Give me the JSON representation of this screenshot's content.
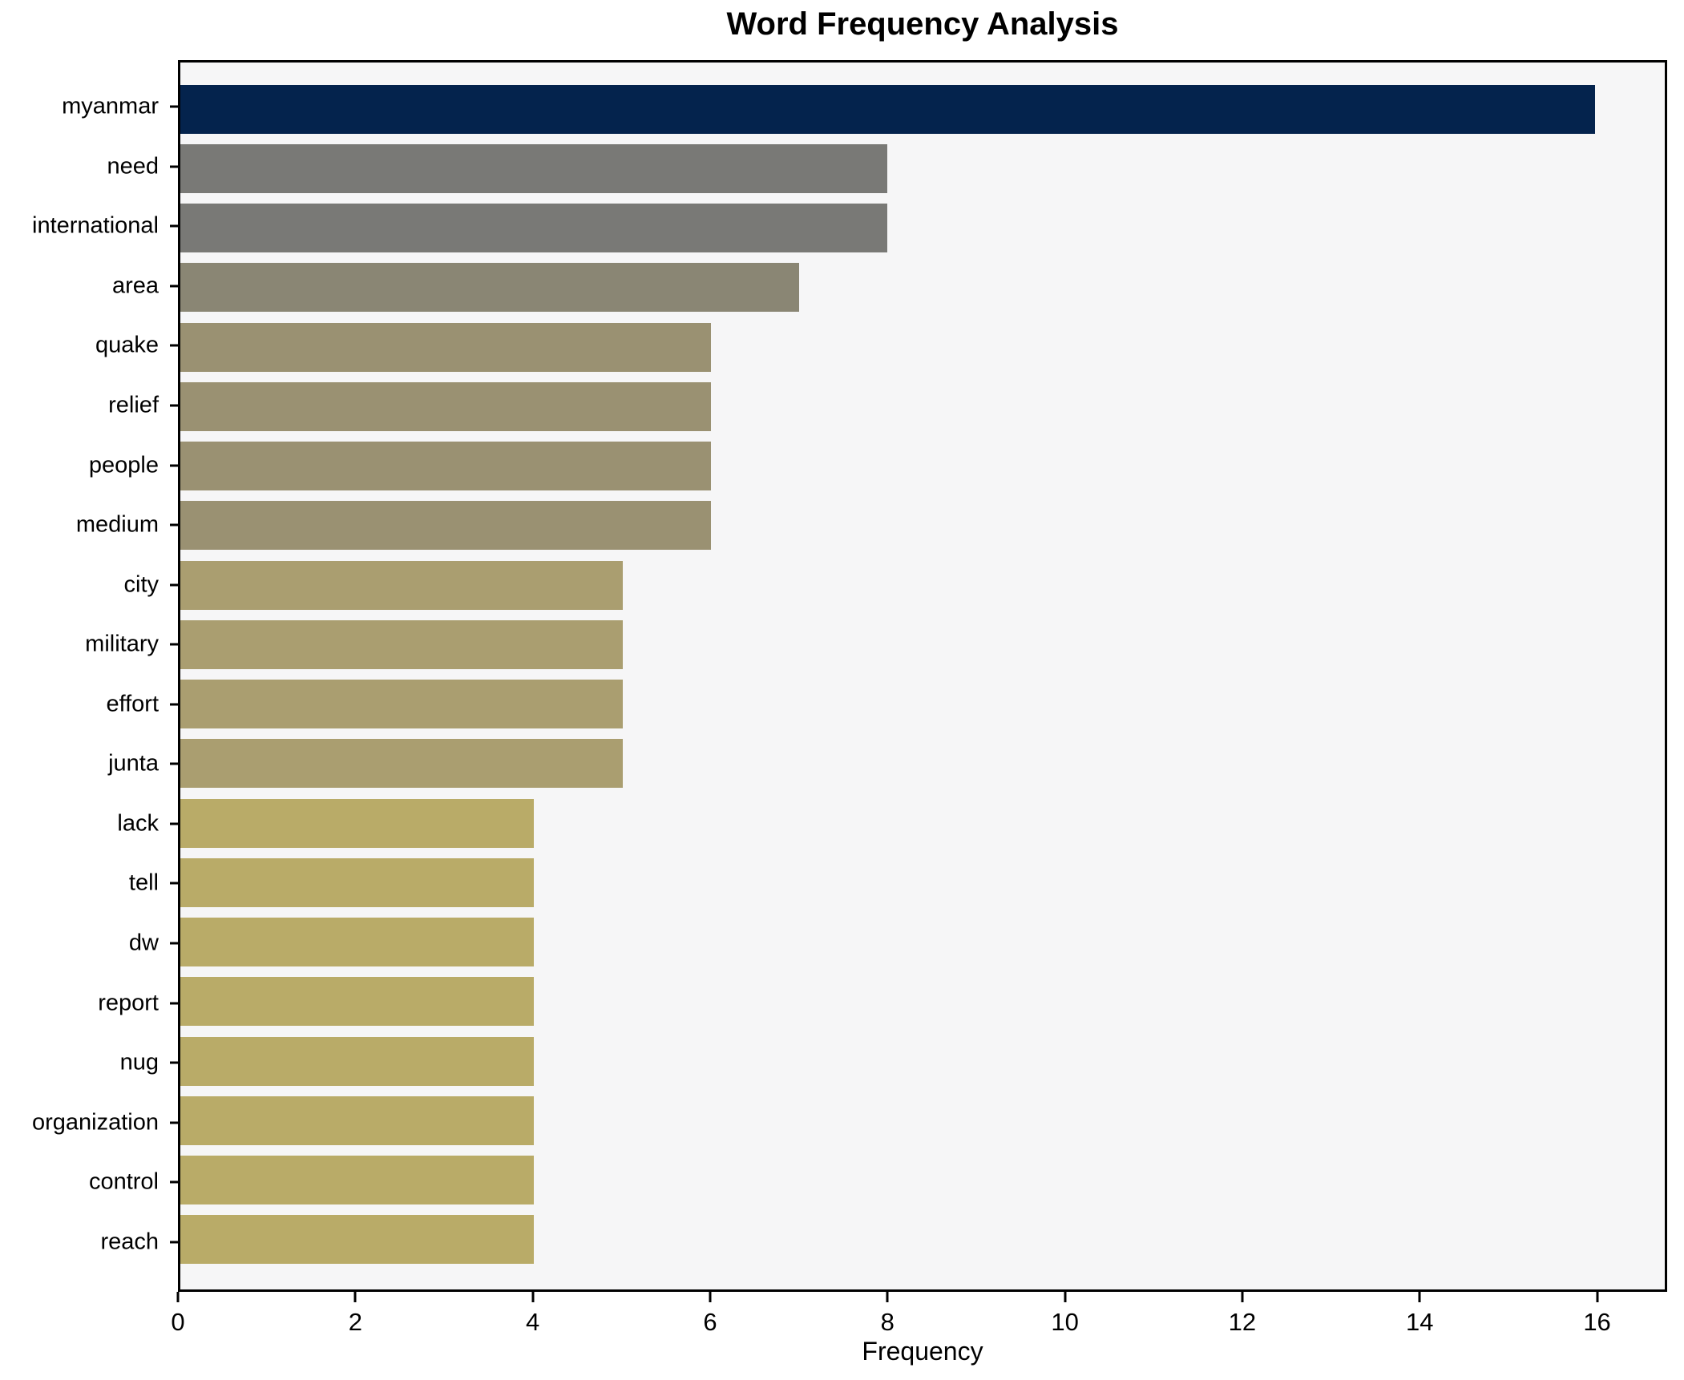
{
  "title": "Word Frequency Analysis",
  "chart_data": {
    "type": "bar",
    "orientation": "horizontal",
    "title": "Word Frequency Analysis",
    "xlabel": "Frequency",
    "ylabel": "",
    "categories": [
      "myanmar",
      "need",
      "international",
      "area",
      "quake",
      "relief",
      "people",
      "medium",
      "city",
      "military",
      "effort",
      "junta",
      "lack",
      "tell",
      "dw",
      "report",
      "nug",
      "organization",
      "control",
      "reach"
    ],
    "values": [
      16,
      8,
      8,
      7,
      6,
      6,
      6,
      6,
      5,
      5,
      5,
      5,
      4,
      4,
      4,
      4,
      4,
      4,
      4,
      4
    ],
    "bar_colors": [
      "#04234d",
      "#797976",
      "#797976",
      "#8a8674",
      "#9a9172",
      "#9a9172",
      "#9a9172",
      "#9a9172",
      "#aa9e70",
      "#aa9e70",
      "#aa9e70",
      "#aa9e70",
      "#b9ab68",
      "#b9ab68",
      "#b9ab68",
      "#b9ab68",
      "#b9ab68",
      "#b9ab68",
      "#b9ab68",
      "#b9ab68"
    ],
    "xlim": [
      0,
      16.79
    ],
    "xticks": [
      0,
      2,
      4,
      6,
      8,
      10,
      12,
      14,
      16
    ],
    "grid": "off",
    "legend": "none",
    "plot_background": "#f6f6f7",
    "figure_background": "#ffffff",
    "spine_color": "#000000",
    "text_color": "#000000"
  }
}
